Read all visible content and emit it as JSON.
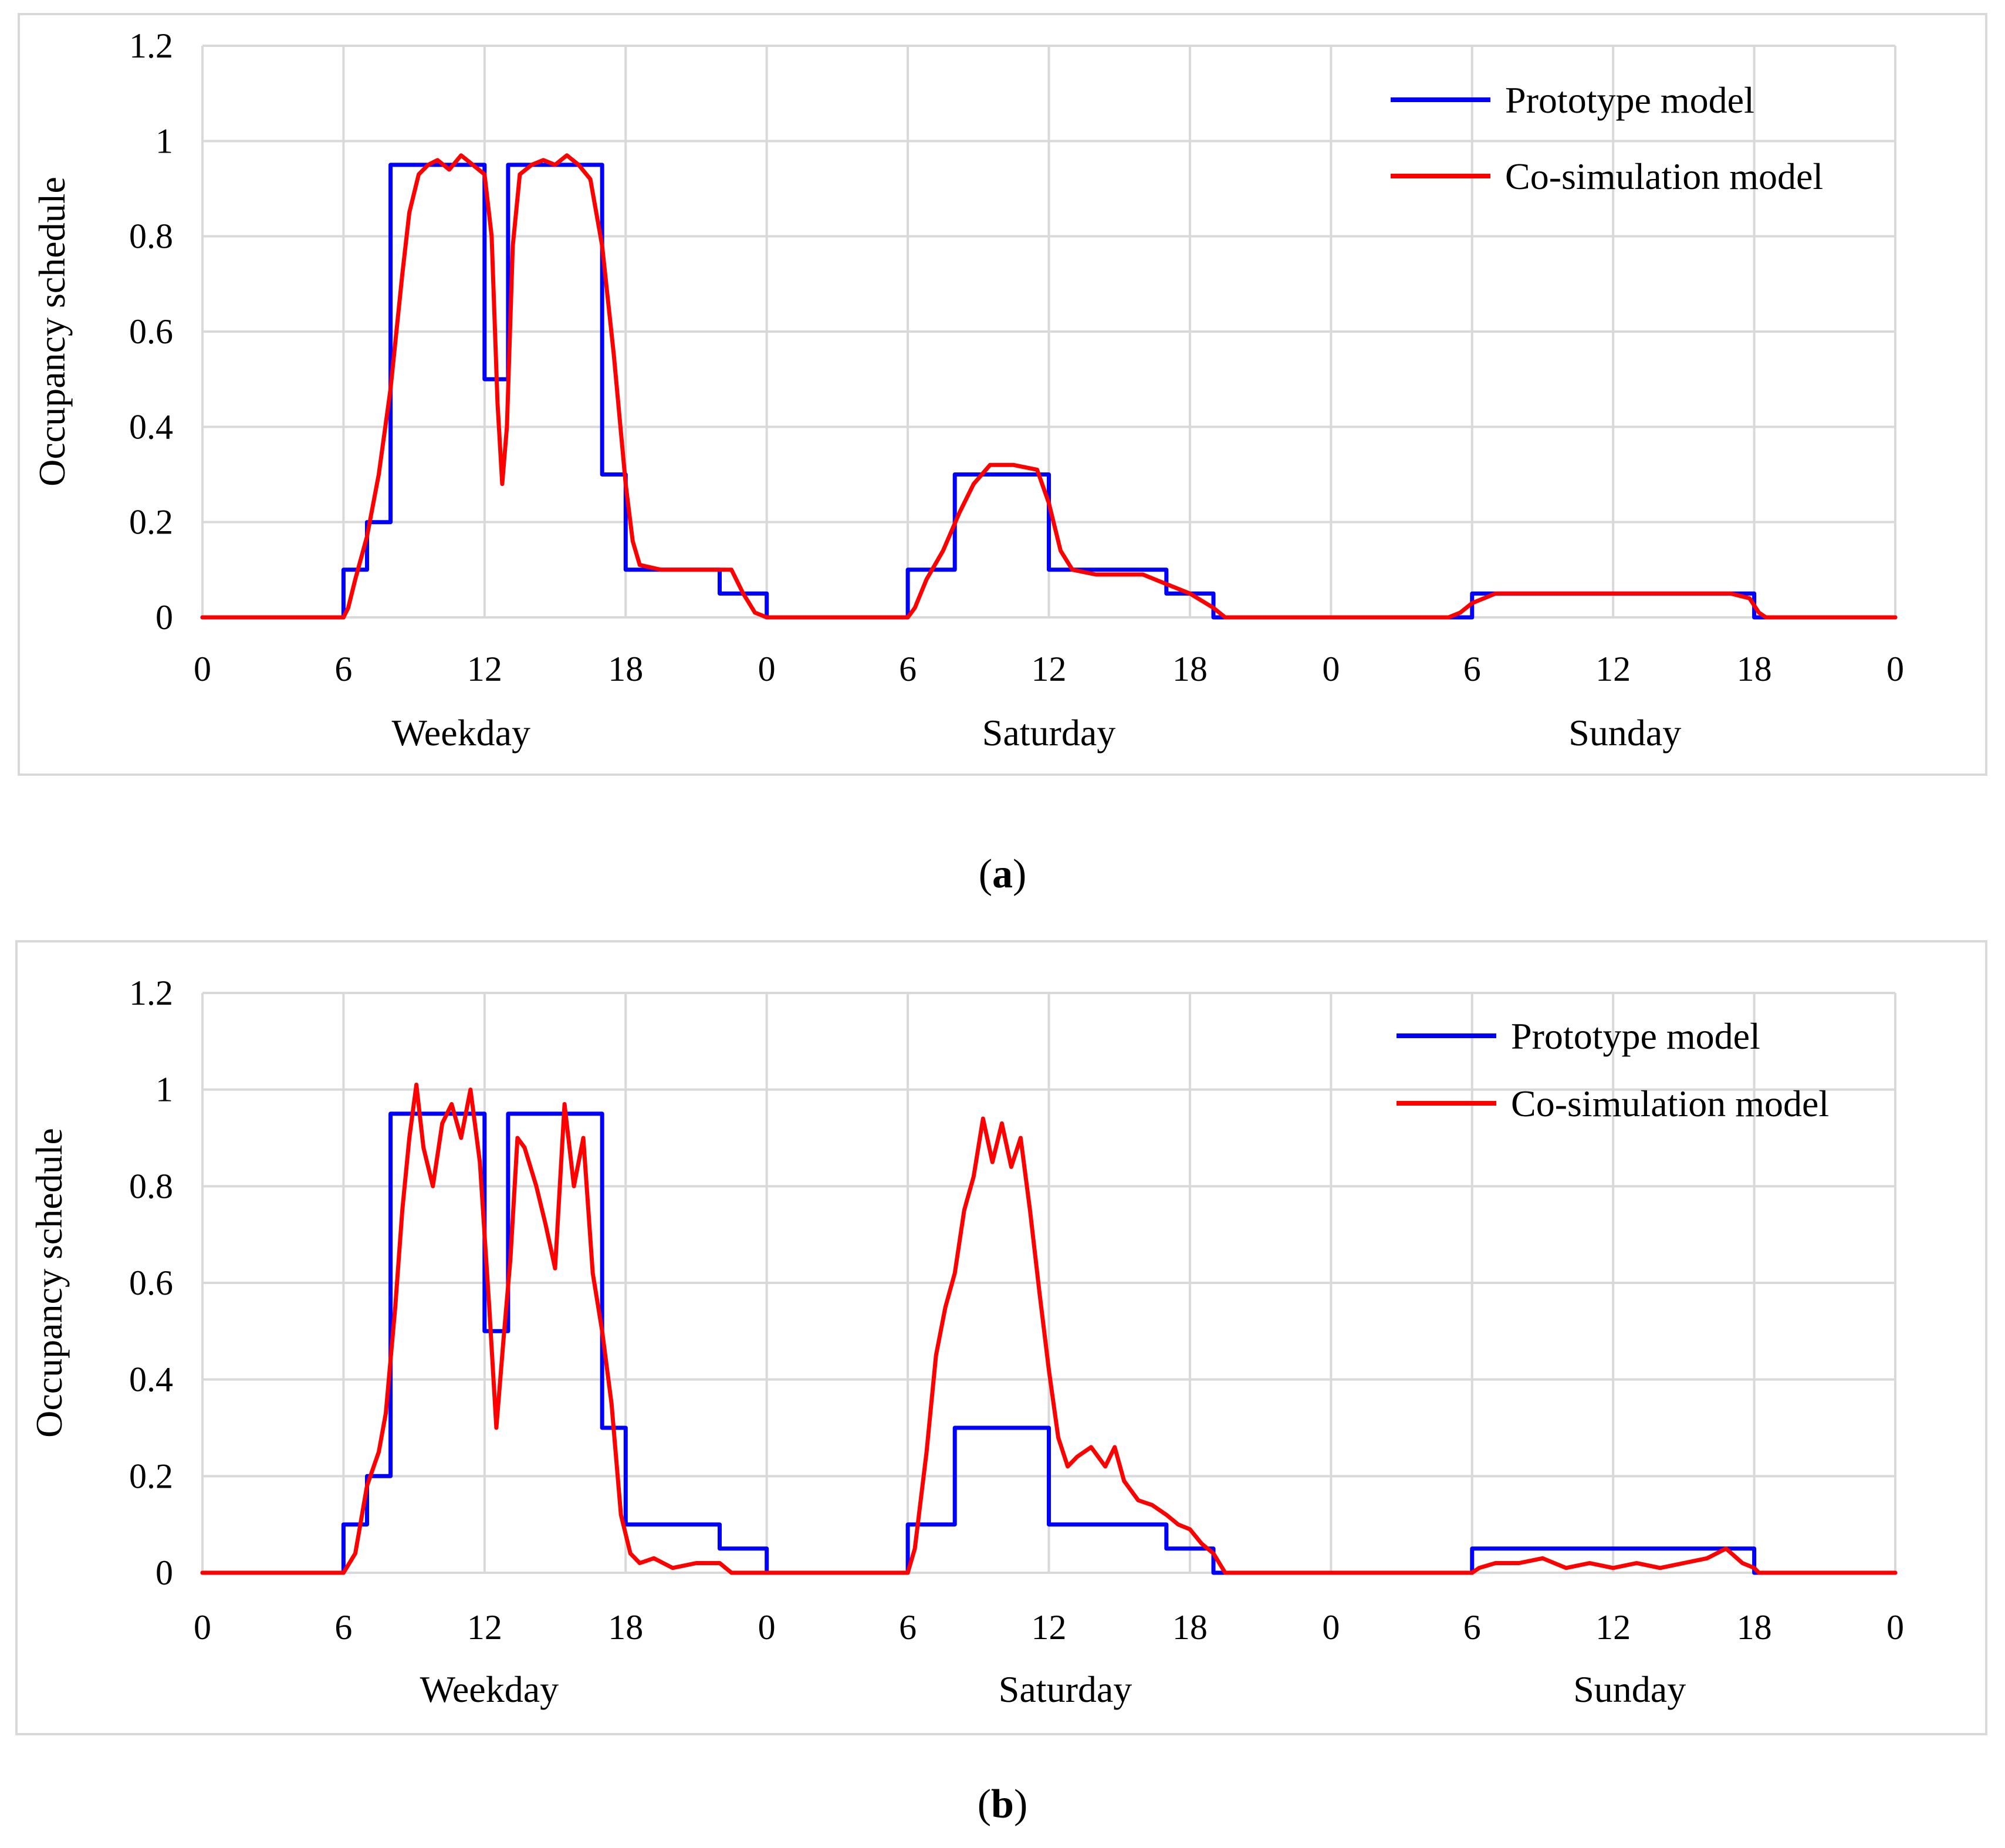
{
  "colors": {
    "prototype": "#0000ff",
    "cosim": "#ff0000",
    "grid": "#d9d9d9"
  },
  "chart_data": [
    {
      "id": "a",
      "type": "line",
      "caption_letter": "a",
      "ylabel": "Occupancy schedule",
      "ylim": [
        0,
        1.2
      ],
      "yticks": [
        "0",
        "0.2",
        "0.4",
        "0.6",
        "0.8",
        "1",
        "1.2"
      ],
      "xlim": [
        0,
        72
      ],
      "xtick_labels": [
        "0",
        "6",
        "12",
        "18",
        "0",
        "6",
        "12",
        "18",
        "0",
        "6",
        "12",
        "18",
        "0"
      ],
      "day_labels": [
        "Weekday",
        "Saturday",
        "Sunday"
      ],
      "legend": [
        "Prototype model",
        "Co-simulation model"
      ],
      "series": [
        {
          "name": "Prototype model",
          "color": "#0000ff",
          "points": [
            [
              0,
              0
            ],
            [
              6,
              0
            ],
            [
              6,
              0.1
            ],
            [
              7,
              0.1
            ],
            [
              7,
              0.2
            ],
            [
              8,
              0.2
            ],
            [
              8,
              0.95
            ],
            [
              12,
              0.95
            ],
            [
              12,
              0.5
            ],
            [
              13,
              0.5
            ],
            [
              13,
              0.95
            ],
            [
              17,
              0.95
            ],
            [
              17,
              0.3
            ],
            [
              18,
              0.3
            ],
            [
              18,
              0.1
            ],
            [
              22,
              0.1
            ],
            [
              22,
              0.05
            ],
            [
              24,
              0.05
            ],
            [
              24,
              0
            ],
            [
              30,
              0
            ],
            [
              30,
              0.1
            ],
            [
              32,
              0.1
            ],
            [
              32,
              0.3
            ],
            [
              36,
              0.3
            ],
            [
              36,
              0.1
            ],
            [
              41,
              0.1
            ],
            [
              41,
              0.05
            ],
            [
              43,
              0.05
            ],
            [
              43,
              0
            ],
            [
              54,
              0
            ],
            [
              54,
              0.05
            ],
            [
              66,
              0.05
            ],
            [
              66,
              0
            ],
            [
              72,
              0
            ]
          ]
        },
        {
          "name": "Co-simulation model",
          "color": "#ff0000",
          "points": [
            [
              0,
              0
            ],
            [
              6,
              0
            ],
            [
              6.2,
              0.02
            ],
            [
              6.5,
              0.08
            ],
            [
              7,
              0.17
            ],
            [
              7.5,
              0.3
            ],
            [
              8,
              0.48
            ],
            [
              8.5,
              0.72
            ],
            [
              8.8,
              0.85
            ],
            [
              9.2,
              0.93
            ],
            [
              9.6,
              0.95
            ],
            [
              10,
              0.96
            ],
            [
              10.5,
              0.94
            ],
            [
              11,
              0.97
            ],
            [
              11.5,
              0.95
            ],
            [
              12,
              0.93
            ],
            [
              12.3,
              0.8
            ],
            [
              12.55,
              0.45
            ],
            [
              12.75,
              0.28
            ],
            [
              12.95,
              0.4
            ],
            [
              13.2,
              0.78
            ],
            [
              13.5,
              0.93
            ],
            [
              14,
              0.95
            ],
            [
              14.5,
              0.96
            ],
            [
              15,
              0.95
            ],
            [
              15.5,
              0.97
            ],
            [
              16,
              0.95
            ],
            [
              16.5,
              0.92
            ],
            [
              17,
              0.78
            ],
            [
              17.5,
              0.55
            ],
            [
              18,
              0.28
            ],
            [
              18.3,
              0.16
            ],
            [
              18.6,
              0.11
            ],
            [
              19.5,
              0.1
            ],
            [
              21,
              0.1
            ],
            [
              22.5,
              0.1
            ],
            [
              23,
              0.05
            ],
            [
              23.5,
              0.01
            ],
            [
              24,
              0
            ],
            [
              30,
              0
            ],
            [
              30.3,
              0.02
            ],
            [
              30.8,
              0.08
            ],
            [
              31.5,
              0.14
            ],
            [
              32.2,
              0.22
            ],
            [
              32.8,
              0.28
            ],
            [
              33.5,
              0.32
            ],
            [
              34.5,
              0.32
            ],
            [
              35.5,
              0.31
            ],
            [
              36,
              0.24
            ],
            [
              36.5,
              0.14
            ],
            [
              37,
              0.1
            ],
            [
              38,
              0.09
            ],
            [
              39,
              0.09
            ],
            [
              40,
              0.09
            ],
            [
              41,
              0.07
            ],
            [
              42,
              0.05
            ],
            [
              43,
              0.02
            ],
            [
              43.5,
              0
            ],
            [
              53,
              0
            ],
            [
              53.5,
              0.01
            ],
            [
              54,
              0.03
            ],
            [
              55,
              0.05
            ],
            [
              57,
              0.05
            ],
            [
              59,
              0.05
            ],
            [
              61,
              0.05
            ],
            [
              63,
              0.05
            ],
            [
              65,
              0.05
            ],
            [
              65.8,
              0.04
            ],
            [
              66.2,
              0.01
            ],
            [
              66.5,
              0
            ],
            [
              72,
              0
            ]
          ]
        }
      ]
    },
    {
      "id": "b",
      "type": "line",
      "caption_letter": "b",
      "ylabel": "Occupancy schedule",
      "ylim": [
        0,
        1.2
      ],
      "yticks": [
        "0",
        "0.2",
        "0.4",
        "0.6",
        "0.8",
        "1",
        "1.2"
      ],
      "xlim": [
        0,
        72
      ],
      "xtick_labels": [
        "0",
        "6",
        "12",
        "18",
        "0",
        "6",
        "12",
        "18",
        "0",
        "6",
        "12",
        "18",
        "0"
      ],
      "day_labels": [
        "Weekday",
        "Saturday",
        "Sunday"
      ],
      "legend": [
        "Prototype model",
        "Co-simulation model"
      ],
      "series": [
        {
          "name": "Prototype model",
          "color": "#0000ff",
          "points": [
            [
              0,
              0
            ],
            [
              6,
              0
            ],
            [
              6,
              0.1
            ],
            [
              7,
              0.1
            ],
            [
              7,
              0.2
            ],
            [
              8,
              0.2
            ],
            [
              8,
              0.95
            ],
            [
              12,
              0.95
            ],
            [
              12,
              0.5
            ],
            [
              13,
              0.5
            ],
            [
              13,
              0.95
            ],
            [
              17,
              0.95
            ],
            [
              17,
              0.3
            ],
            [
              18,
              0.3
            ],
            [
              18,
              0.1
            ],
            [
              22,
              0.1
            ],
            [
              22,
              0.05
            ],
            [
              24,
              0.05
            ],
            [
              24,
              0
            ],
            [
              30,
              0
            ],
            [
              30,
              0.1
            ],
            [
              32,
              0.1
            ],
            [
              32,
              0.3
            ],
            [
              36,
              0.3
            ],
            [
              36,
              0.1
            ],
            [
              41,
              0.1
            ],
            [
              41,
              0.05
            ],
            [
              43,
              0.05
            ],
            [
              43,
              0
            ],
            [
              54,
              0
            ],
            [
              54,
              0.05
            ],
            [
              66,
              0.05
            ],
            [
              66,
              0
            ],
            [
              72,
              0
            ]
          ]
        },
        {
          "name": "Co-simulation model",
          "color": "#ff0000",
          "points": [
            [
              0,
              0
            ],
            [
              6,
              0
            ],
            [
              6.5,
              0.04
            ],
            [
              7,
              0.18
            ],
            [
              7.5,
              0.25
            ],
            [
              7.8,
              0.33
            ],
            [
              8.2,
              0.55
            ],
            [
              8.5,
              0.75
            ],
            [
              8.8,
              0.9
            ],
            [
              9.1,
              1.01
            ],
            [
              9.4,
              0.88
            ],
            [
              9.8,
              0.8
            ],
            [
              10.2,
              0.93
            ],
            [
              10.6,
              0.97
            ],
            [
              11,
              0.9
            ],
            [
              11.4,
              1.0
            ],
            [
              11.8,
              0.85
            ],
            [
              12.2,
              0.55
            ],
            [
              12.5,
              0.3
            ],
            [
              12.8,
              0.48
            ],
            [
              13.1,
              0.65
            ],
            [
              13.4,
              0.9
            ],
            [
              13.7,
              0.88
            ],
            [
              14.2,
              0.8
            ],
            [
              14.6,
              0.72
            ],
            [
              15,
              0.63
            ],
            [
              15.4,
              0.97
            ],
            [
              15.8,
              0.8
            ],
            [
              16.2,
              0.9
            ],
            [
              16.6,
              0.62
            ],
            [
              17,
              0.5
            ],
            [
              17.4,
              0.35
            ],
            [
              17.8,
              0.12
            ],
            [
              18.2,
              0.04
            ],
            [
              18.6,
              0.02
            ],
            [
              19.2,
              0.03
            ],
            [
              20,
              0.01
            ],
            [
              21,
              0.02
            ],
            [
              22,
              0.02
            ],
            [
              22.5,
              0
            ],
            [
              30,
              0
            ],
            [
              30.3,
              0.05
            ],
            [
              30.8,
              0.25
            ],
            [
              31.2,
              0.45
            ],
            [
              31.6,
              0.55
            ],
            [
              32,
              0.62
            ],
            [
              32.4,
              0.75
            ],
            [
              32.8,
              0.82
            ],
            [
              33.2,
              0.94
            ],
            [
              33.6,
              0.85
            ],
            [
              34,
              0.93
            ],
            [
              34.4,
              0.84
            ],
            [
              34.8,
              0.9
            ],
            [
              35.2,
              0.75
            ],
            [
              35.6,
              0.58
            ],
            [
              36,
              0.42
            ],
            [
              36.4,
              0.28
            ],
            [
              36.8,
              0.22
            ],
            [
              37.2,
              0.24
            ],
            [
              37.8,
              0.26
            ],
            [
              38.4,
              0.22
            ],
            [
              38.8,
              0.26
            ],
            [
              39.2,
              0.19
            ],
            [
              39.8,
              0.15
            ],
            [
              40.4,
              0.14
            ],
            [
              41,
              0.12
            ],
            [
              41.5,
              0.1
            ],
            [
              42,
              0.09
            ],
            [
              42.5,
              0.06
            ],
            [
              43,
              0.04
            ],
            [
              43.5,
              0
            ],
            [
              54,
              0
            ],
            [
              54.3,
              0.01
            ],
            [
              55,
              0.02
            ],
            [
              56,
              0.02
            ],
            [
              57,
              0.03
            ],
            [
              58,
              0.01
            ],
            [
              59,
              0.02
            ],
            [
              60,
              0.01
            ],
            [
              61,
              0.02
            ],
            [
              62,
              0.01
            ],
            [
              63,
              0.02
            ],
            [
              64,
              0.03
            ],
            [
              64.8,
              0.05
            ],
            [
              65.5,
              0.02
            ],
            [
              66,
              0.01
            ],
            [
              66.2,
              0
            ],
            [
              72,
              0
            ]
          ]
        }
      ]
    }
  ]
}
